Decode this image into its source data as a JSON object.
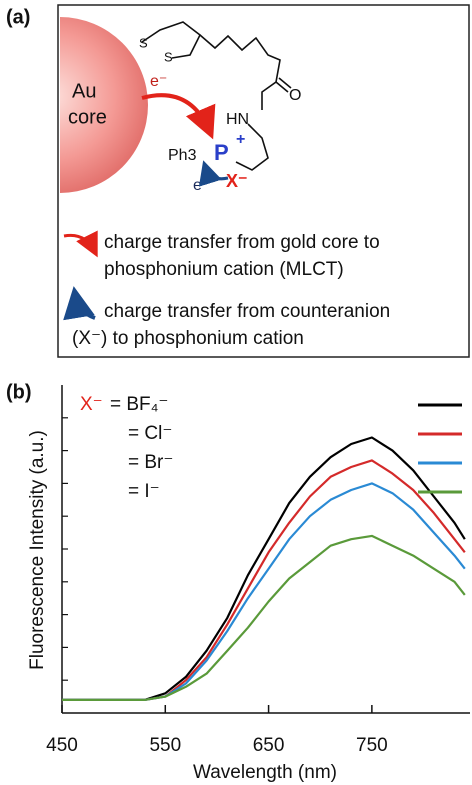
{
  "panel_a": {
    "label": "(a)",
    "core_line1": "Au",
    "core_line2": "core",
    "sulfur_1": "S",
    "sulfur_2": "S",
    "oxygen": "O",
    "amine": "HN",
    "phenyl": "Ph3",
    "phosphorus": "P",
    "plus": "+",
    "electron_1": "e⁻",
    "electron_2": "e⁻",
    "anion": "X⁻",
    "legend_red_line1": "charge transfer from gold core to",
    "legend_red_line2": "phosphonium cation (MLCT)",
    "legend_blue_line1": "charge transfer from counteranion",
    "legend_blue_line2": "(X⁻) to phosphonium cation"
  },
  "chart_data": {
    "type": "line",
    "panel_label": "(b)",
    "x_label": "Wavelength (nm)",
    "y_label": "Fluorescence Intensity (a.u.)",
    "legend_prefix": "X⁻",
    "x": [
      450,
      470,
      490,
      510,
      530,
      550,
      570,
      590,
      610,
      630,
      650,
      670,
      690,
      710,
      730,
      750,
      770,
      790,
      810,
      830,
      840
    ],
    "series": [
      {
        "name": "= BF₄⁻",
        "color": "#000000",
        "values": [
          0.4,
          0.4,
          0.4,
          0.4,
          0.4,
          0.6,
          1.1,
          1.9,
          2.9,
          4.2,
          5.3,
          6.4,
          7.2,
          7.8,
          8.2,
          8.4,
          8.0,
          7.4,
          6.6,
          5.8,
          5.3
        ]
      },
      {
        "name": "= Cl⁻",
        "color": "#d42a2a",
        "values": [
          0.4,
          0.4,
          0.4,
          0.4,
          0.4,
          0.5,
          1.0,
          1.7,
          2.7,
          3.8,
          4.9,
          5.8,
          6.6,
          7.2,
          7.5,
          7.7,
          7.3,
          6.8,
          6.1,
          5.3,
          4.9
        ]
      },
      {
        "name": "= Br⁻",
        "color": "#2a8ad4",
        "values": [
          0.4,
          0.4,
          0.4,
          0.4,
          0.4,
          0.5,
          0.9,
          1.6,
          2.5,
          3.5,
          4.4,
          5.3,
          6.0,
          6.5,
          6.8,
          7.0,
          6.7,
          6.2,
          5.5,
          4.8,
          4.4
        ]
      },
      {
        "name": "= I⁻",
        "color": "#5a9a3a",
        "values": [
          0.4,
          0.4,
          0.4,
          0.4,
          0.4,
          0.5,
          0.8,
          1.2,
          1.9,
          2.6,
          3.4,
          4.1,
          4.6,
          5.1,
          5.3,
          5.4,
          5.1,
          4.8,
          4.4,
          4.0,
          3.6
        ]
      }
    ],
    "xlim": [
      450,
      845
    ],
    "xticks": [
      450,
      550,
      650,
      750
    ],
    "ylim": [
      0,
      10
    ],
    "yticks": [
      1,
      2,
      3,
      4,
      5,
      6,
      7,
      8,
      9
    ],
    "legend": "upper left"
  }
}
